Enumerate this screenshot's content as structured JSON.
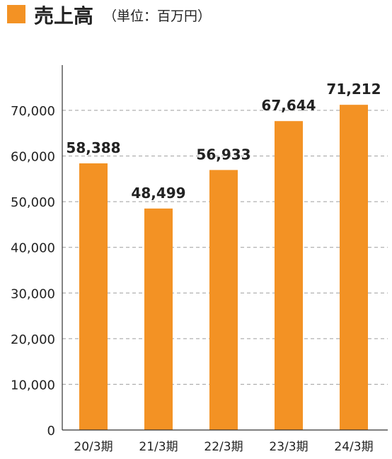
{
  "legend": {
    "swatch_color": "#F39224"
  },
  "chart_data": {
    "type": "bar",
    "title": "売上高",
    "subtitle": "（単位：百万円）",
    "categories": [
      "20/3期",
      "21/3期",
      "22/3期",
      "23/3期",
      "24/3期"
    ],
    "values": [
      58388,
      48499,
      56933,
      67644,
      71212
    ],
    "value_labels": [
      "58,388",
      "48,499",
      "56,933",
      "67,644",
      "71,212"
    ],
    "yticks": [
      0,
      10000,
      20000,
      30000,
      40000,
      50000,
      60000,
      70000
    ],
    "ytick_labels": [
      "0",
      "10,000",
      "20,000",
      "30,000",
      "40,000",
      "50,000",
      "60,000",
      "70,000"
    ],
    "ylim": [
      0,
      70000
    ],
    "grid": true,
    "bar_color": "#F39224",
    "grid_color": "#9E9E9E",
    "axis_color": "#333333"
  }
}
